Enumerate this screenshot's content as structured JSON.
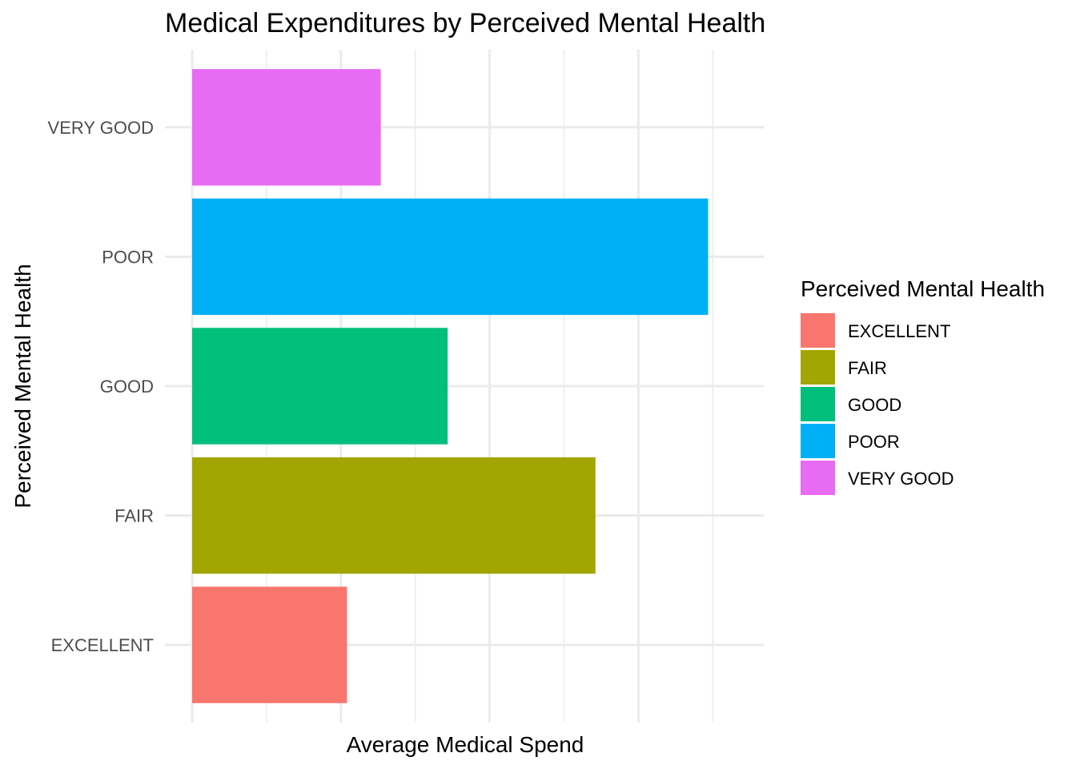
{
  "chart_data": {
    "type": "bar",
    "orientation": "horizontal",
    "title": "Medical Expenditures by Perceived Mental Health",
    "xlabel": "Average Medical Spend",
    "ylabel": "Perceived Mental Health",
    "x_tick_labels_shown": false,
    "categories": [
      "EXCELLENT",
      "FAIR",
      "GOOD",
      "POOR",
      "VERY GOOD"
    ],
    "values": [
      2.2,
      5.73,
      3.63,
      7.33,
      2.68
    ],
    "xlim": [
      0,
      7.7
    ],
    "colors": [
      "#F8766D",
      "#A3A500",
      "#00BF7D",
      "#00B0F6",
      "#E76BF3"
    ],
    "grid": true,
    "legend": {
      "title": "Perceived Mental Health",
      "position": "right",
      "entries": [
        "EXCELLENT",
        "FAIR",
        "GOOD",
        "POOR",
        "VERY GOOD"
      ]
    }
  }
}
